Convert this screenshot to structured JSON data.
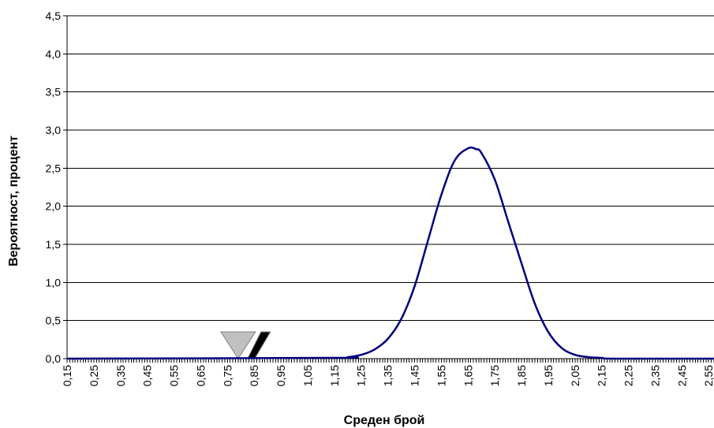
{
  "chart_data": {
    "type": "line",
    "title": "",
    "xlabel": "Среден брой",
    "ylabel": "Вероятност, процент",
    "xlim": [
      0.15,
      2.57
    ],
    "ylim": [
      0,
      4.5
    ],
    "y_ticks": [
      "0,0",
      "0,5",
      "1,0",
      "1,5",
      "2,0",
      "2,5",
      "3,0",
      "3,5",
      "4,0",
      "4,5"
    ],
    "x_ticks": [
      "0,15",
      "0,25",
      "0,35",
      "0,45",
      "0,55",
      "0,65",
      "0,75",
      "0,85",
      "0,95",
      "1,05",
      "1,15",
      "1,25",
      "1,35",
      "1,45",
      "1,55",
      "1,65",
      "1,75",
      "1,85",
      "1,95",
      "2,05",
      "2,15",
      "2,25",
      "2,35",
      "2,45",
      "2,55"
    ],
    "grid": "horizontal",
    "line_color": "#000080",
    "series": [
      {
        "x": [
          1.15,
          1.2,
          1.25,
          1.3,
          1.35,
          1.4,
          1.45,
          1.5,
          1.55,
          1.6,
          1.65,
          1.68,
          1.7,
          1.75,
          1.8,
          1.85,
          1.9,
          1.95,
          2.0,
          2.05,
          2.1,
          2.15,
          2.2
        ],
        "values": [
          0.01,
          0.02,
          0.05,
          0.12,
          0.26,
          0.52,
          0.95,
          1.55,
          2.15,
          2.6,
          2.76,
          2.75,
          2.7,
          2.35,
          1.8,
          1.25,
          0.72,
          0.35,
          0.14,
          0.05,
          0.02,
          0.01,
          0.0
        ]
      }
    ],
    "markers": [
      {
        "x": 0.79,
        "shape": "down-triangle",
        "color": "#c0c0c0"
      },
      {
        "x": 0.84,
        "shape": "right-triangle",
        "color": "#000000"
      }
    ]
  }
}
